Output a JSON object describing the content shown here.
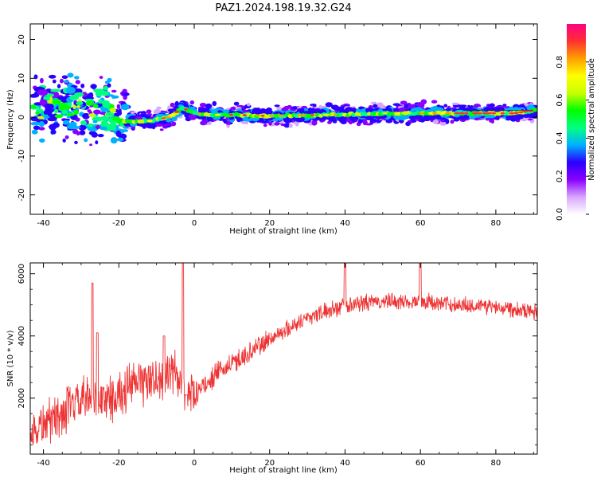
{
  "title": "PAZ1.2024.198.19.32.G24",
  "chart_data": [
    {
      "type": "heatmap",
      "xlabel": "Height of straight line (km)",
      "ylabel": "Frequency (Hz)",
      "xlim": [
        -43.5,
        91
      ],
      "ylim": [
        -25,
        24
      ],
      "xticks": [
        -40,
        -20,
        0,
        20,
        40,
        60,
        80
      ],
      "yticks": [
        -20,
        -10,
        0,
        10,
        20
      ],
      "colorbar": {
        "label": "Normalized spectral amplitude",
        "range": [
          0,
          1
        ],
        "ticks": [
          "0.0",
          "0.2",
          "0.4",
          "0.6",
          "0.8"
        ],
        "colors": [
          "#ffffff",
          "#d9a6ff",
          "#8a00ff",
          "#2a00ff",
          "#00b0ff",
          "#00ff80",
          "#00ff00",
          "#c8ff00",
          "#ffff00",
          "#ffa000",
          "#ff3030",
          "#ff0080"
        ]
      },
      "ridge_frequency": [
        [
          -43,
          2
        ],
        [
          -40,
          3
        ],
        [
          -36,
          3
        ],
        [
          -33,
          3
        ],
        [
          -30,
          2
        ],
        [
          -27,
          2
        ],
        [
          -25,
          1.5
        ],
        [
          -23,
          1
        ],
        [
          -21,
          -1
        ],
        [
          -19,
          -1
        ],
        [
          -15,
          -1
        ],
        [
          -12,
          -1
        ],
        [
          -9,
          -0.5
        ],
        [
          -7,
          0
        ],
        [
          -5,
          1
        ],
        [
          -3.5,
          2.2
        ],
        [
          -2,
          2
        ],
        [
          0,
          1
        ],
        [
          5,
          0.6
        ],
        [
          10,
          0.6
        ],
        [
          20,
          0.3
        ],
        [
          30,
          0.5
        ],
        [
          40,
          0.7
        ],
        [
          50,
          1
        ],
        [
          60,
          1
        ],
        [
          70,
          1
        ],
        [
          80,
          1
        ],
        [
          85,
          1
        ],
        [
          90,
          1.8
        ]
      ]
    },
    {
      "type": "line",
      "xlabel": "Height of straight line (km)",
      "ylabel": "SNR (10 * v/v)",
      "xlim": [
        -43.5,
        91
      ],
      "ylim": [
        200,
        6350
      ],
      "xticks": [
        -40,
        -20,
        0,
        20,
        40,
        60,
        80
      ],
      "yticks": [
        2000,
        4000,
        6000
      ],
      "color": "#ee3333",
      "baseline": [
        [
          -43.5,
          800
        ],
        [
          -40,
          1200
        ],
        [
          -35,
          1500
        ],
        [
          -30,
          1900
        ],
        [
          -25,
          1900
        ],
        [
          -20,
          2100
        ],
        [
          -15,
          2500
        ],
        [
          -10,
          2600
        ],
        [
          -5,
          2800
        ],
        [
          -2,
          2100
        ],
        [
          0,
          2100
        ],
        [
          5,
          2700
        ],
        [
          10,
          3100
        ],
        [
          20,
          3900
        ],
        [
          30,
          4600
        ],
        [
          40,
          5000
        ],
        [
          50,
          5100
        ],
        [
          60,
          5100
        ],
        [
          70,
          5000
        ],
        [
          80,
          4950
        ],
        [
          91,
          4800
        ]
      ],
      "spikes": [
        [
          -27,
          5700
        ],
        [
          -25.7,
          4100
        ],
        [
          -8,
          4000
        ],
        [
          -3,
          6350
        ],
        [
          -2,
          2100
        ],
        [
          40,
          6350
        ],
        [
          60,
          6350
        ]
      ]
    }
  ]
}
